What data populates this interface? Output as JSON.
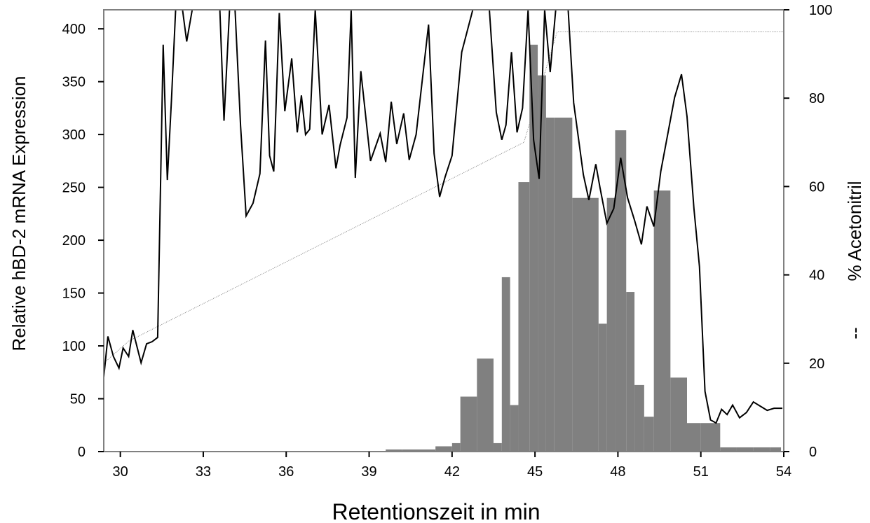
{
  "chart_data": {
    "type": "bar+line",
    "xlabel": "Retentionszeit in min",
    "ylabel": "Relative hBD-2 mRNA Expression",
    "y2label": "% Acetonitril",
    "y2label_prefix": "--",
    "xlim": [
      29.4,
      54.0
    ],
    "ylim": [
      0,
      418
    ],
    "y2lim": [
      0,
      100
    ],
    "xticks": [
      30,
      33,
      36,
      39,
      42,
      45,
      48,
      51,
      54
    ],
    "yticks": [
      0,
      50,
      100,
      150,
      200,
      250,
      300,
      350,
      400
    ],
    "y2ticks": [
      0,
      20,
      40,
      60,
      80,
      100
    ],
    "colors": {
      "bars": "#808080",
      "line": "#000000",
      "gradient": "#808080",
      "axes": "#808080"
    },
    "bars": {
      "name": "hBD-2 mRNA",
      "width": 0.6,
      "x": [
        39.6,
        40.2,
        40.8,
        41.4,
        42.0,
        42.6,
        43.2,
        43.65,
        44.1,
        44.55,
        45.0,
        45.6,
        46.2,
        46.8,
        47.4,
        48.0,
        48.6,
        49.2,
        49.8,
        50.4,
        51.0,
        51.6,
        52.2,
        52.8,
        53.4
      ],
      "values": [
        2,
        2,
        3,
        5,
        8,
        52,
        88,
        8,
        165,
        44,
        255,
        356,
        316,
        240,
        121,
        240,
        304,
        151,
        63,
        33,
        247,
        70,
        22,
        22,
        4
      ],
      "_comment_left_edges": [
        39.3,
        39.9,
        40.5,
        41.1,
        41.7,
        42.3,
        42.9,
        43.5,
        43.8,
        44.4,
        44.7,
        45.3,
        45.9,
        46.5,
        47.1,
        47.7,
        48.3,
        48.9,
        49.5,
        50.1,
        50.7,
        51.3,
        51.9,
        52.5,
        53.1
      ]
    },
    "bars_precise": {
      "left": [
        39.6,
        40.2,
        40.8,
        41.4,
        42.0,
        42.3,
        42.9,
        43.5,
        43.8,
        44.1,
        44.4,
        44.8,
        45.1,
        45.4,
        45.7,
        46.35,
        47.0,
        47.3,
        47.6,
        47.9,
        48.3,
        48.6,
        48.95,
        49.3,
        49.9,
        50.5,
        51.0,
        51.7,
        52.3,
        52.9,
        53.5
      ],
      "right": [
        40.2,
        40.8,
        41.4,
        42.0,
        42.3,
        42.9,
        43.5,
        43.8,
        44.1,
        44.4,
        44.8,
        45.1,
        45.4,
        45.7,
        46.35,
        47.0,
        47.3,
        47.6,
        47.9,
        48.3,
        48.6,
        48.95,
        49.3,
        49.9,
        50.5,
        51.0,
        51.7,
        52.3,
        52.9,
        53.5,
        53.9
      ],
      "values": [
        2,
        2,
        2,
        5,
        8,
        52,
        88,
        8,
        165,
        44,
        255,
        385,
        356,
        316,
        316,
        240,
        240,
        121,
        240,
        304,
        151,
        63,
        33,
        247,
        70,
        27,
        27,
        4,
        4,
        4,
        4
      ]
    },
    "line": {
      "name": "hBD-2",
      "x": [
        29.4,
        29.6,
        29.8,
        30.0,
        30.2,
        30.4,
        30.55,
        30.75,
        30.9,
        31.1,
        31.3,
        31.5,
        31.75,
        32.0,
        32.2,
        32.45,
        32.7,
        32.95,
        33.2,
        33.45,
        33.7,
        33.95,
        34.1,
        34.35,
        34.6,
        34.85,
        35.1,
        35.35,
        35.6,
        35.85,
        36.1,
        36.35,
        36.5,
        36.75,
        36.95,
        37.2,
        37.45,
        37.7,
        37.95,
        38.1,
        38.35,
        38.55,
        38.75,
        38.95,
        39.2,
        39.45,
        39.7,
        39.95,
        40.2,
        40.4,
        40.65,
        40.9,
        41.1,
        41.35,
        41.6,
        41.85,
        42.1,
        42.35,
        42.6,
        42.85,
        43.1,
        43.35,
        43.6,
        43.85,
        44.1,
        44.3,
        44.55,
        44.8,
        45.05,
        45.3,
        45.5,
        45.7,
        45.95,
        46.2,
        46.45,
        46.75,
        47.0,
        47.3,
        47.6,
        47.9,
        48.2,
        48.5,
        48.8,
        49.05,
        49.3,
        49.55,
        49.8,
        50.05,
        50.3,
        50.55,
        50.8,
        51.0,
        51.2,
        51.45,
        51.65,
        51.9,
        52.15,
        52.4,
        52.65,
        52.9,
        53.15,
        53.4,
        53.65,
        53.95
      ],
      "values": [
        70,
        110,
        90,
        80,
        98,
        90,
        115,
        100,
        85,
        103,
        108,
        385,
        257,
        418,
        418,
        388,
        418,
        418,
        418,
        418,
        312,
        418,
        418,
        222,
        235,
        390,
        270,
        415,
        322,
        370,
        302,
        337,
        300,
        418,
        310,
        328,
        270,
        290,
        418,
        260,
        360,
        275,
        300,
        273,
        330,
        280,
        320,
        275,
        404,
        285,
        418,
        418,
        418,
        418,
        240,
        270,
        418,
        418,
        418,
        418,
        418,
        320,
        295,
        308,
        378,
        300,
        418,
        295,
        260,
        418,
        418,
        418,
        418,
        330,
        262,
        250,
        272,
        218,
        258,
        240,
        230,
        175,
        240,
        200,
        220,
        330,
        360,
        332,
        245,
        175,
        57,
        30,
        27,
        41,
        35,
        44,
        32,
        37,
        46,
        43,
        38,
        40,
        42,
        42
      ],
      "_clean_x": [
        29.4,
        29.55,
        29.75,
        29.95,
        30.1,
        30.3,
        30.45,
        30.75,
        30.95,
        31.15,
        31.35,
        31.55,
        31.7,
        31.85,
        32.0,
        32.25,
        32.4,
        32.6,
        32.8,
        33.6,
        33.75,
        33.95,
        34.15,
        34.35,
        34.55,
        34.8,
        35.05,
        35.25,
        35.4,
        35.55,
        35.75,
        35.95,
        36.2,
        36.4,
        36.55,
        36.7,
        36.85,
        37.05,
        37.3,
        37.55,
        37.8,
        37.95,
        38.2,
        38.35,
        38.5,
        38.7,
        39.05,
        39.4,
        39.6,
        39.8,
        40.0,
        40.25,
        40.45,
        40.7,
        41.15,
        41.35,
        41.55,
        41.75,
        42.0,
        42.35,
        42.75,
        42.95,
        43.15,
        43.35,
        43.6,
        43.8,
        43.95,
        44.15,
        44.35,
        44.55,
        44.75,
        44.95,
        45.15,
        45.35,
        45.55,
        45.75,
        45.95,
        46.2,
        46.4,
        46.75,
        46.95,
        47.2,
        47.35,
        47.6,
        47.85,
        48.1,
        48.35,
        48.6,
        48.85,
        49.05,
        49.3,
        49.55,
        49.8,
        50.05,
        50.3,
        50.5,
        50.75,
        50.95,
        51.15,
        51.35,
        51.55,
        51.75,
        51.95,
        52.15,
        52.4,
        52.65,
        52.9,
        53.15,
        53.4,
        53.65,
        53.95
      ],
      "_clean_values": [
        70,
        109,
        90,
        79,
        98,
        90,
        115,
        84,
        102,
        104,
        108,
        385,
        257,
        333,
        418,
        418,
        388,
        418,
        418,
        418,
        313,
        418,
        418,
        308,
        223,
        235,
        263,
        389,
        280,
        265,
        415,
        322,
        372,
        302,
        337,
        300,
        305,
        418,
        300,
        328,
        268,
        290,
        316,
        418,
        259,
        360,
        275,
        301,
        274,
        331,
        291,
        320,
        276,
        300,
        404,
        282,
        241,
        260,
        280,
        378,
        418,
        418,
        418,
        418,
        321,
        295,
        309,
        378,
        302,
        325,
        418,
        295,
        258,
        418,
        359,
        418,
        418,
        418,
        330,
        262,
        238,
        272,
        250,
        216,
        230,
        278,
        240,
        219,
        196,
        232,
        213,
        265,
        300,
        335,
        357,
        317,
        230,
        175,
        57,
        30,
        27,
        40,
        35,
        44,
        32,
        37,
        47,
        43,
        39,
        41,
        41
      ]
    },
    "gradient": {
      "name": "% Acetonitril",
      "x": [
        29.4,
        30.3,
        44.6,
        45.8,
        54.0
      ],
      "values": [
        20,
        25,
        70,
        95,
        95
      ]
    }
  }
}
